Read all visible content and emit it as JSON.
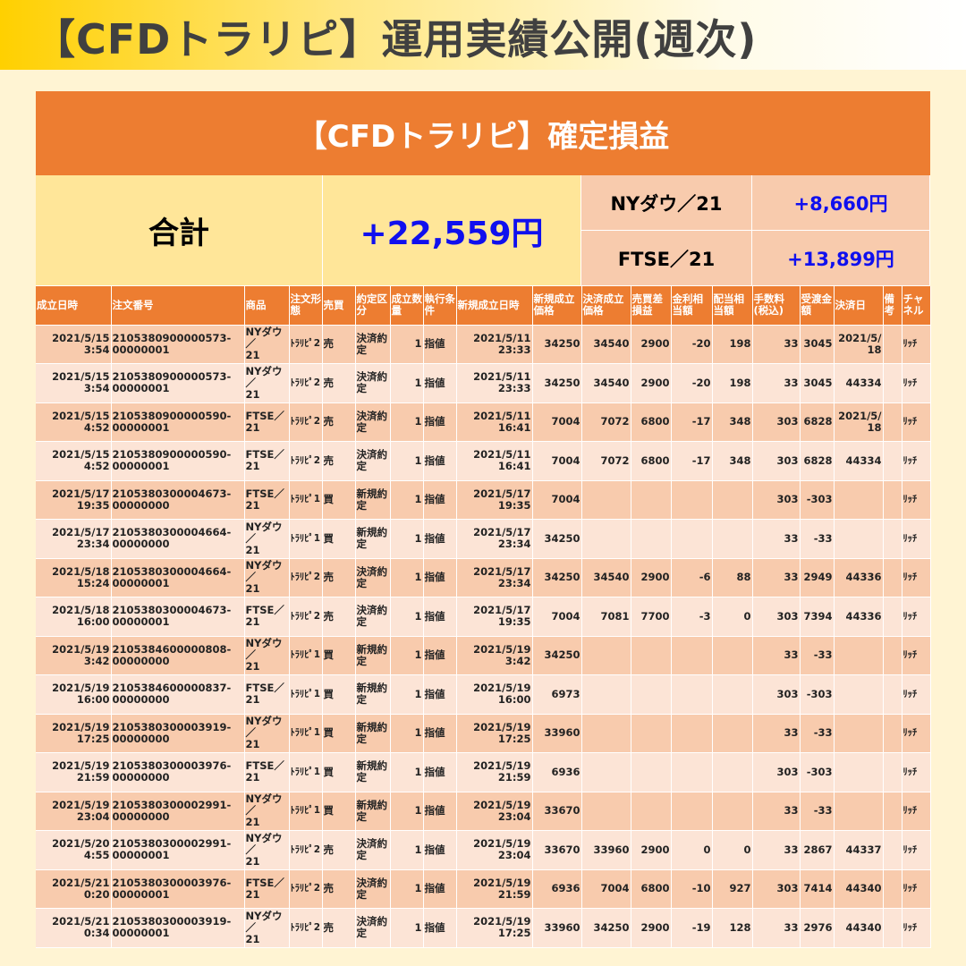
{
  "header": {
    "title": "【CFDトラリピ】運用実績公開(週次)"
  },
  "panel": {
    "title": "【CFDトラリピ】確定損益",
    "total_label": "合計",
    "total_value": "+22,559円",
    "breakdown": [
      {
        "label": "NYダウ／21",
        "value": "+8,660円"
      },
      {
        "label": "FTSE／21",
        "value": "+13,899円"
      }
    ]
  },
  "colors": {
    "accent": "#ed7d31",
    "summary_yellow": "#ffe699",
    "row_dark": "#f8cbad",
    "row_light": "#fce4d6",
    "profit_blue": "#1010ee"
  },
  "table": {
    "columns": [
      "成立日時",
      "注文番号",
      "商品",
      "注文形態",
      "売買",
      "約定区分",
      "成立数量",
      "執行条件",
      "新規成立日時",
      "新規成立価格",
      "決済成立価格",
      "売買差損益",
      "金利相当額",
      "配当相当額",
      "手数料(税込)",
      "受渡金額",
      "決済日",
      "備考",
      "チャネル"
    ],
    "rows": [
      [
        "2021/5/15\n3:54",
        "2105380900000573-\n00000001",
        "NYダウ／\n21",
        "ﾄﾗﾘﾋﾟ2",
        "売",
        "決済約\n定",
        "1",
        "指値",
        "2021/5/11\n23:33",
        "34250",
        "34540",
        "2900",
        "-20",
        "198",
        "33",
        "3045",
        "2021/5/\n18",
        "",
        "ﾘｯﾁ"
      ],
      [
        "2021/5/15\n3:54",
        "2105380900000573-\n00000001",
        "NYダウ／\n21",
        "ﾄﾗﾘﾋﾟ2",
        "売",
        "決済約\n定",
        "1",
        "指値",
        "2021/5/11\n23:33",
        "34250",
        "34540",
        "2900",
        "-20",
        "198",
        "33",
        "3045",
        "44334",
        "",
        "ﾘｯﾁ"
      ],
      [
        "2021/5/15\n4:52",
        "2105380900000590-\n00000001",
        "FTSE／\n21",
        "ﾄﾗﾘﾋﾟ2",
        "売",
        "決済約\n定",
        "1",
        "指値",
        "2021/5/11\n16:41",
        "7004",
        "7072",
        "6800",
        "-17",
        "348",
        "303",
        "6828",
        "2021/5/\n18",
        "",
        "ﾘｯﾁ"
      ],
      [
        "2021/5/15\n4:52",
        "2105380900000590-\n00000001",
        "FTSE／\n21",
        "ﾄﾗﾘﾋﾟ2",
        "売",
        "決済約\n定",
        "1",
        "指値",
        "2021/5/11\n16:41",
        "7004",
        "7072",
        "6800",
        "-17",
        "348",
        "303",
        "6828",
        "44334",
        "",
        "ﾘｯﾁ"
      ],
      [
        "2021/5/17\n19:35",
        "2105380300004673-\n00000000",
        "FTSE／\n21",
        "ﾄﾗﾘﾋﾟ1",
        "買",
        "新規約\n定",
        "1",
        "指値",
        "2021/5/17\n19:35",
        "7004",
        "",
        "",
        "",
        "",
        "303",
        "-303",
        "",
        "",
        "ﾘｯﾁ"
      ],
      [
        "2021/5/17\n23:34",
        "2105380300004664-\n00000000",
        "NYダウ／\n21",
        "ﾄﾗﾘﾋﾟ1",
        "買",
        "新規約\n定",
        "1",
        "指値",
        "2021/5/17\n23:34",
        "34250",
        "",
        "",
        "",
        "",
        "33",
        "-33",
        "",
        "",
        "ﾘｯﾁ"
      ],
      [
        "2021/5/18\n15:24",
        "2105380300004664-\n00000001",
        "NYダウ／\n21",
        "ﾄﾗﾘﾋﾟ2",
        "売",
        "決済約\n定",
        "1",
        "指値",
        "2021/5/17\n23:34",
        "34250",
        "34540",
        "2900",
        "-6",
        "88",
        "33",
        "2949",
        "44336",
        "",
        "ﾘｯﾁ"
      ],
      [
        "2021/5/18\n16:00",
        "2105380300004673-\n00000001",
        "FTSE／\n21",
        "ﾄﾗﾘﾋﾟ2",
        "売",
        "決済約\n定",
        "1",
        "指値",
        "2021/5/17\n19:35",
        "7004",
        "7081",
        "7700",
        "-3",
        "0",
        "303",
        "7394",
        "44336",
        "",
        "ﾘｯﾁ"
      ],
      [
        "2021/5/19\n3:42",
        "2105384600000808-\n00000000",
        "NYダウ／\n21",
        "ﾄﾗﾘﾋﾟ1",
        "買",
        "新規約\n定",
        "1",
        "指値",
        "2021/5/19\n3:42",
        "34250",
        "",
        "",
        "",
        "",
        "33",
        "-33",
        "",
        "",
        "ﾘｯﾁ"
      ],
      [
        "2021/5/19\n16:00",
        "2105384600000837-\n00000000",
        "FTSE／\n21",
        "ﾄﾗﾘﾋﾟ1",
        "買",
        "新規約\n定",
        "1",
        "指値",
        "2021/5/19\n16:00",
        "6973",
        "",
        "",
        "",
        "",
        "303",
        "-303",
        "",
        "",
        "ﾘｯﾁ"
      ],
      [
        "2021/5/19\n17:25",
        "2105380300003919-\n00000000",
        "NYダウ／\n21",
        "ﾄﾗﾘﾋﾟ1",
        "買",
        "新規約\n定",
        "1",
        "指値",
        "2021/5/19\n17:25",
        "33960",
        "",
        "",
        "",
        "",
        "33",
        "-33",
        "",
        "",
        "ﾘｯﾁ"
      ],
      [
        "2021/5/19\n21:59",
        "2105380300003976-\n00000000",
        "FTSE／\n21",
        "ﾄﾗﾘﾋﾟ1",
        "買",
        "新規約\n定",
        "1",
        "指値",
        "2021/5/19\n21:59",
        "6936",
        "",
        "",
        "",
        "",
        "303",
        "-303",
        "",
        "",
        "ﾘｯﾁ"
      ],
      [
        "2021/5/19\n23:04",
        "2105380300002991-\n00000000",
        "NYダウ／\n21",
        "ﾄﾗﾘﾋﾟ1",
        "買",
        "新規約\n定",
        "1",
        "指値",
        "2021/5/19\n23:04",
        "33670",
        "",
        "",
        "",
        "",
        "33",
        "-33",
        "",
        "",
        "ﾘｯﾁ"
      ],
      [
        "2021/5/20\n4:55",
        "2105380300002991-\n00000001",
        "NYダウ／\n21",
        "ﾄﾗﾘﾋﾟ2",
        "売",
        "決済約\n定",
        "1",
        "指値",
        "2021/5/19\n23:04",
        "33670",
        "33960",
        "2900",
        "0",
        "0",
        "33",
        "2867",
        "44337",
        "",
        "ﾘｯﾁ"
      ],
      [
        "2021/5/21\n0:20",
        "2105380300003976-\n00000001",
        "FTSE／\n21",
        "ﾄﾗﾘﾋﾟ2",
        "売",
        "決済約\n定",
        "1",
        "指値",
        "2021/5/19\n21:59",
        "6936",
        "7004",
        "6800",
        "-10",
        "927",
        "303",
        "7414",
        "44340",
        "",
        "ﾘｯﾁ"
      ],
      [
        "2021/5/21\n0:34",
        "2105380300003919-\n00000001",
        "NYダウ／\n21",
        "ﾄﾗﾘﾋﾟ2",
        "売",
        "決済約\n定",
        "1",
        "指値",
        "2021/5/19\n17:25",
        "33960",
        "34250",
        "2900",
        "-19",
        "128",
        "33",
        "2976",
        "44340",
        "",
        "ﾘｯﾁ"
      ]
    ]
  }
}
